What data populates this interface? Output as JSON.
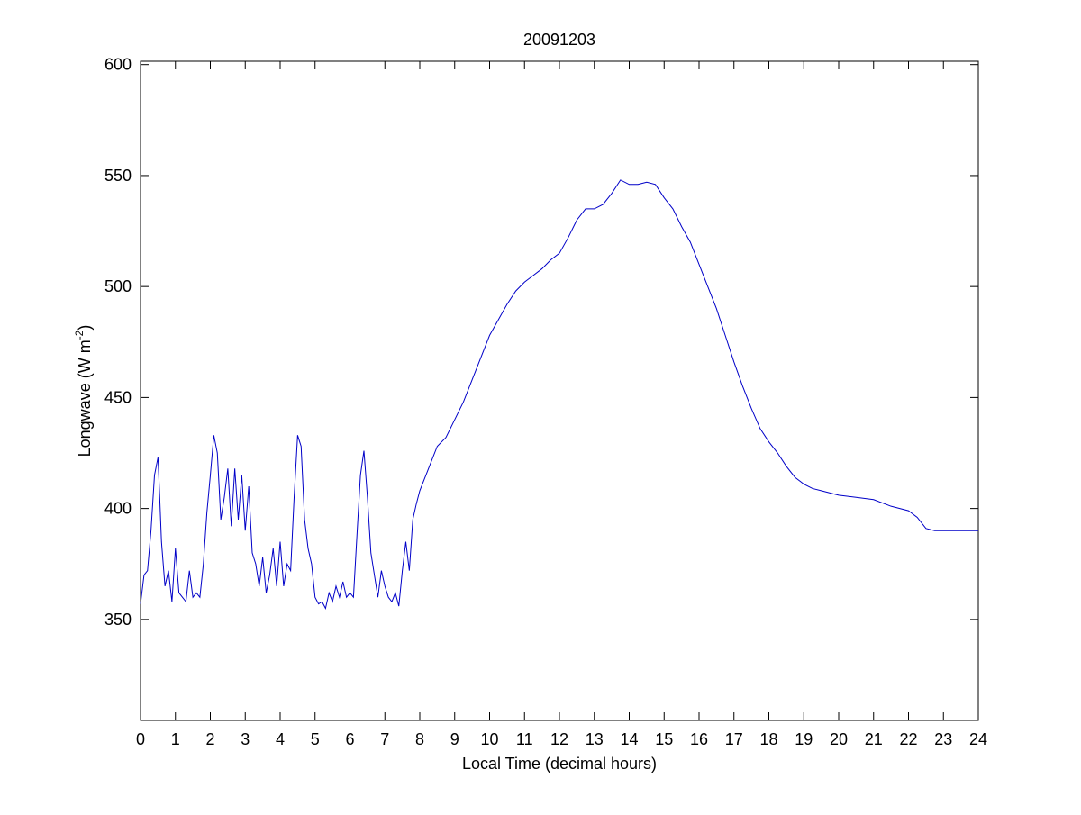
{
  "chart_data": {
    "type": "line",
    "title": "20091203",
    "xlabel": "Local Time (decimal hours)",
    "ylabel": {
      "text": "Longwave (W m",
      "sup": "-2",
      "end": ")"
    },
    "x": [
      0,
      0.1,
      0.2,
      0.3,
      0.4,
      0.5,
      0.55,
      0.6,
      0.7,
      0.8,
      0.9,
      1.0,
      1.1,
      1.2,
      1.3,
      1.4,
      1.5,
      1.6,
      1.7,
      1.8,
      1.9,
      2.0,
      2.1,
      2.2,
      2.3,
      2.4,
      2.5,
      2.6,
      2.7,
      2.8,
      2.9,
      3.0,
      3.1,
      3.2,
      3.3,
      3.4,
      3.5,
      3.6,
      3.7,
      3.8,
      3.9,
      4.0,
      4.1,
      4.2,
      4.3,
      4.4,
      4.5,
      4.6,
      4.7,
      4.8,
      4.9,
      5.0,
      5.1,
      5.2,
      5.3,
      5.4,
      5.5,
      5.6,
      5.7,
      5.8,
      5.9,
      6.0,
      6.1,
      6.2,
      6.3,
      6.4,
      6.5,
      6.6,
      6.7,
      6.8,
      6.9,
      7.0,
      7.1,
      7.2,
      7.3,
      7.4,
      7.5,
      7.6,
      7.7,
      7.8,
      7.9,
      8.0,
      8.25,
      8.5,
      8.75,
      9.0,
      9.25,
      9.5,
      9.75,
      10.0,
      10.25,
      10.5,
      10.75,
      11.0,
      11.25,
      11.5,
      11.75,
      12.0,
      12.25,
      12.5,
      12.75,
      13.0,
      13.25,
      13.5,
      13.75,
      14.0,
      14.25,
      14.5,
      14.75,
      15.0,
      15.25,
      15.5,
      15.75,
      16.0,
      16.25,
      16.5,
      16.75,
      17.0,
      17.25,
      17.5,
      17.75,
      18.0,
      18.25,
      18.5,
      18.75,
      19.0,
      19.25,
      19.5,
      19.75,
      20.0,
      20.5,
      21.0,
      21.5,
      22.0,
      22.25,
      22.5,
      22.75,
      23.0,
      23.5,
      24.0
    ],
    "series": [
      {
        "color": "#0000c8",
        "values": [
          357,
          370,
          372,
          390,
          415,
          423,
          405,
          385,
          365,
          372,
          358,
          382,
          362,
          360,
          358,
          372,
          360,
          362,
          360,
          375,
          398,
          415,
          433,
          425,
          395,
          405,
          418,
          392,
          418,
          395,
          415,
          390,
          410,
          380,
          375,
          365,
          378,
          362,
          370,
          382,
          365,
          385,
          365,
          375,
          372,
          405,
          433,
          428,
          395,
          382,
          375,
          360,
          357,
          358,
          355,
          362,
          358,
          365,
          360,
          367,
          360,
          362,
          360,
          388,
          415,
          426,
          405,
          380,
          370,
          360,
          372,
          365,
          360,
          358,
          362,
          356,
          372,
          385,
          372,
          395,
          402,
          408,
          418,
          428,
          432,
          440,
          448,
          458,
          468,
          478,
          485,
          492,
          498,
          502,
          505,
          508,
          512,
          515,
          522,
          530,
          535,
          535,
          537,
          542,
          548,
          546,
          546,
          547,
          546,
          540,
          535,
          527,
          520,
          510,
          500,
          490,
          478,
          466,
          455,
          445,
          436,
          430,
          425,
          419,
          414,
          411,
          409,
          408,
          407,
          406,
          405,
          404,
          401,
          399,
          396,
          391,
          390,
          390,
          390,
          390
        ]
      }
    ],
    "xlim": [
      0,
      24
    ],
    "xticks": [
      0,
      1,
      2,
      3,
      4,
      5,
      6,
      7,
      8,
      9,
      10,
      11,
      12,
      13,
      14,
      15,
      16,
      17,
      18,
      19,
      20,
      21,
      22,
      23,
      24
    ],
    "ylim": [
      304.5,
      601.5
    ],
    "yticks": [
      350,
      400,
      450,
      500,
      550,
      600
    ]
  }
}
